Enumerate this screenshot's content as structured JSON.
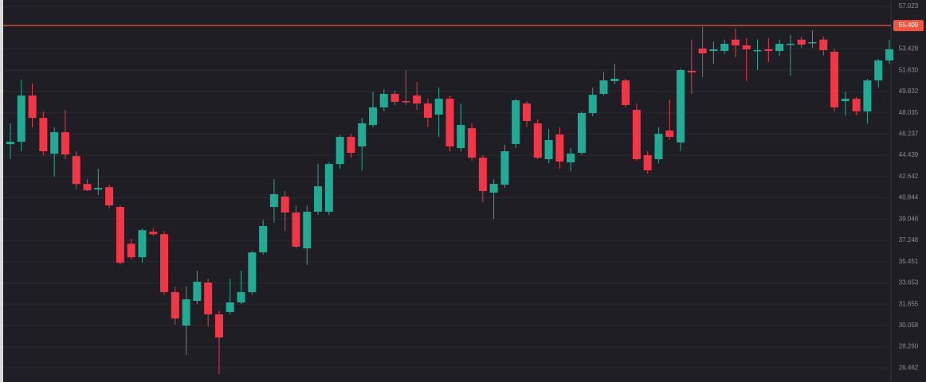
{
  "chart_data": {
    "type": "candlestick",
    "up_color": "#22ab94",
    "down_color": "#f23645",
    "grid": true,
    "ylim": [
      25.27,
      57.57
    ],
    "yticks": [
      26.462,
      {
        "value": 28.26,
        "label": "28.260"
      },
      30.058,
      31.855,
      33.653,
      35.451,
      37.248,
      39.046,
      40.844,
      42.642,
      44.439,
      46.237,
      48.035,
      49.832,
      {
        "value": 51.63,
        "label": "51.630"
      },
      53.428,
      57.023
    ],
    "price_line": {
      "value": 55.409,
      "color": "#f0553f"
    },
    "open": [
      45.38,
      45.58,
      49.49,
      47.6,
      44.57,
      46.39,
      44.37,
      42.01,
      41.54,
      41.75,
      40.07,
      36.96,
      35.82,
      37.97,
      37.77,
      32.87,
      30.04,
      32.13,
      33.68,
      30.99,
      31.19,
      32.0,
      32.87,
      36.23,
      40.07,
      40.95,
      39.6,
      36.57,
      39.67,
      39.67,
      43.7,
      45.99,
      45.19,
      47.0,
      48.49,
      49.63,
      49.02,
      49.49,
      48.82,
      47.88,
      49.22,
      45.05,
      46.73,
      44.24,
      41.28,
      41.95,
      45.39,
      48.82,
      47.14,
      44.11,
      46.2,
      43.84,
      44.65,
      48.01,
      49.63,
      50.71,
      50.77,
      48.28,
      44.45,
      44.11,
      46.53,
      45.52,
      51.58,
      53.47,
      53.26,
      53.26,
      54.22,
      53.73,
      53.26,
      53.4,
      53.26,
      53.8,
      54.22,
      53.94,
      54.22,
      53.2,
      49.02,
      49.22,
      48.15,
      50.77,
      52.46
    ],
    "high": [
      47.13,
      50.84,
      50.5,
      48.14,
      46.8,
      48.28,
      44.78,
      42.42,
      43.29,
      41.95,
      40.2,
      37.37,
      38.25,
      38.25,
      38.04,
      33.34,
      33.34,
      34.69,
      34.01,
      31.32,
      34.01,
      34.69,
      36.36,
      38.99,
      42.42,
      41.41,
      40.2,
      40.2,
      43.7,
      43.84,
      46.13,
      46.26,
      47.61,
      49.83,
      50.03,
      49.9,
      51.65,
      50.64,
      49.22,
      50.17,
      49.49,
      48.82,
      47.14,
      44.45,
      42.42,
      45.32,
      49.22,
      49.02,
      47.48,
      46.67,
      46.8,
      45.05,
      48.15,
      50.17,
      51.51,
      52.19,
      50.91,
      48.82,
      44.78,
      46.8,
      49.16,
      51.78,
      54.22,
      55.29,
      54.07,
      54.22,
      55.15,
      54.34,
      54.22,
      54.34,
      54.22,
      54.61,
      54.48,
      55.01,
      54.48,
      53.4,
      49.83,
      49.36,
      50.91,
      52.59,
      54.22
    ],
    "low": [
      44.1,
      44.78,
      46.8,
      44.44,
      42.62,
      44.1,
      41.61,
      41.41,
      41.07,
      39.93,
      35.21,
      35.62,
      35.35,
      37.64,
      32.66,
      30.11,
      27.55,
      31.86,
      29.97,
      25.94,
      30.99,
      31.86,
      32.66,
      36.03,
      38.73,
      38.05,
      36.57,
      35.16,
      39.4,
      39.4,
      43.3,
      44.24,
      43.17,
      46.8,
      48.15,
      48.69,
      48.69,
      48.28,
      46.8,
      45.99,
      44.78,
      44.78,
      43.97,
      40.48,
      39.06,
      41.69,
      45.05,
      46.8,
      44.11,
      43.77,
      43.3,
      43.1,
      44.45,
      47.74,
      49.49,
      50.44,
      48.49,
      43.97,
      42.9,
      43.77,
      45.72,
      44.78,
      49.63,
      51.04,
      52.19,
      52.99,
      52.72,
      50.71,
      51.65,
      52.32,
      52.86,
      51.18,
      53.53,
      53.53,
      52.86,
      48.15,
      47.81,
      47.81,
      47.14,
      50.17,
      52.19
    ],
    "close": [
      45.58,
      49.49,
      47.6,
      44.78,
      46.39,
      44.51,
      42.01,
      41.48,
      41.68,
      40.2,
      35.35,
      35.82,
      38.11,
      37.77,
      32.87,
      30.64,
      32.26,
      33.74,
      30.99,
      29.03,
      32.0,
      32.87,
      36.23,
      38.46,
      41.15,
      39.6,
      36.71,
      39.67,
      41.82,
      43.7,
      45.99,
      44.65,
      47.14,
      48.49,
      49.63,
      48.96,
      48.96,
      48.82,
      47.61,
      49.22,
      45.19,
      47.0,
      44.24,
      41.42,
      42.02,
      44.78,
      49.09,
      47.34,
      44.24,
      45.73,
      43.91,
      44.58,
      48.01,
      49.56,
      50.77,
      50.91,
      48.69,
      44.11,
      43.17,
      46.26,
      45.99,
      51.65,
      51.45,
      53.06,
      53.4,
      53.87,
      53.73,
      53.4,
      53.33,
      53.26,
      53.87,
      53.87,
      53.8,
      54.0,
      53.33,
      48.49,
      49.22,
      48.15,
      50.77,
      52.46,
      53.4
    ]
  }
}
